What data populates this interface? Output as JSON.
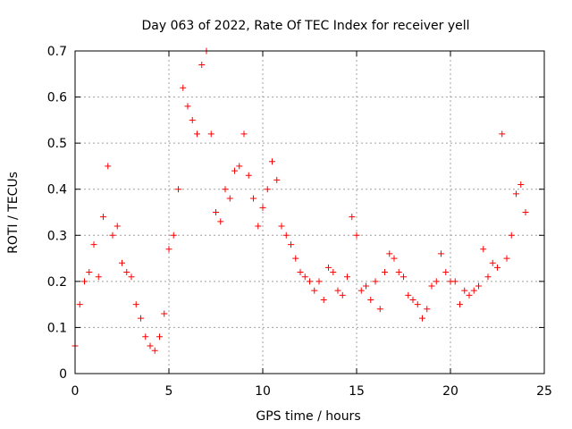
{
  "chart_data": {
    "type": "scatter",
    "title": "Day 063 of 2022, Rate Of TEC Index for receiver yell",
    "xlabel": "GPS time / hours",
    "ylabel": "ROTI / TECUs",
    "xlim": [
      0,
      25
    ],
    "ylim": [
      0,
      0.7
    ],
    "x_ticks": [
      "0",
      "5",
      "10",
      "15",
      "20",
      "25"
    ],
    "y_ticks": [
      "0",
      "0.1",
      "0.2",
      "0.3",
      "0.4",
      "0.5",
      "0.6",
      "0.7"
    ],
    "grid": true,
    "marker": "plus",
    "color": "#ff0000",
    "series": [
      {
        "x": [
          0.0,
          0.25,
          0.5,
          0.75,
          1.0,
          1.25,
          1.5,
          1.75,
          2.0,
          2.25,
          2.5,
          2.75,
          3.0,
          3.25,
          3.5,
          3.75,
          4.0,
          4.25,
          4.5,
          4.75,
          5.0,
          5.25,
          5.5,
          5.75,
          6.0,
          6.25,
          6.5,
          6.75,
          7.0,
          7.25,
          7.5,
          7.75,
          8.0,
          8.25,
          8.5,
          8.75,
          9.0,
          9.25,
          9.5,
          9.75,
          10.0,
          10.25,
          10.5,
          10.75,
          11.0,
          11.25,
          11.5,
          11.75,
          12.0,
          12.25,
          12.5,
          12.75,
          13.0,
          13.25,
          13.5,
          13.75,
          14.0,
          14.25,
          14.5,
          14.75,
          15.0,
          15.25,
          15.5,
          15.75,
          16.0,
          16.25,
          16.5,
          16.75,
          17.0,
          17.25,
          17.5,
          17.75,
          18.0,
          18.25,
          18.5,
          18.75,
          19.0,
          19.25,
          19.5,
          19.75,
          20.0,
          20.25,
          20.5,
          20.75,
          21.0,
          21.25,
          21.5,
          21.75,
          22.0,
          22.25,
          22.5,
          22.75,
          23.0,
          23.25,
          23.5,
          23.75,
          24.0
        ],
        "y": [
          0.06,
          0.15,
          0.2,
          0.22,
          0.28,
          0.21,
          0.34,
          0.45,
          0.3,
          0.32,
          0.24,
          0.22,
          0.21,
          0.15,
          0.12,
          0.08,
          0.06,
          0.05,
          0.08,
          0.13,
          0.27,
          0.3,
          0.4,
          0.62,
          0.58,
          0.55,
          0.52,
          0.67,
          0.7,
          0.52,
          0.35,
          0.33,
          0.4,
          0.38,
          0.44,
          0.45,
          0.52,
          0.43,
          0.38,
          0.32,
          0.36,
          0.4,
          0.46,
          0.42,
          0.32,
          0.3,
          0.28,
          0.25,
          0.22,
          0.21,
          0.2,
          0.18,
          0.2,
          0.16,
          0.23,
          0.22,
          0.18,
          0.17,
          0.21,
          0.34,
          0.3,
          0.18,
          0.19,
          0.16,
          0.2,
          0.14,
          0.22,
          0.26,
          0.25,
          0.22,
          0.21,
          0.17,
          0.16,
          0.15,
          0.12,
          0.14,
          0.19,
          0.2,
          0.26,
          0.22,
          0.2,
          0.2,
          0.15,
          0.18,
          0.17,
          0.18,
          0.19,
          0.27,
          0.21,
          0.24,
          0.23,
          0.52,
          0.25,
          0.3,
          0.39,
          0.41,
          0.35
        ]
      }
    ]
  }
}
